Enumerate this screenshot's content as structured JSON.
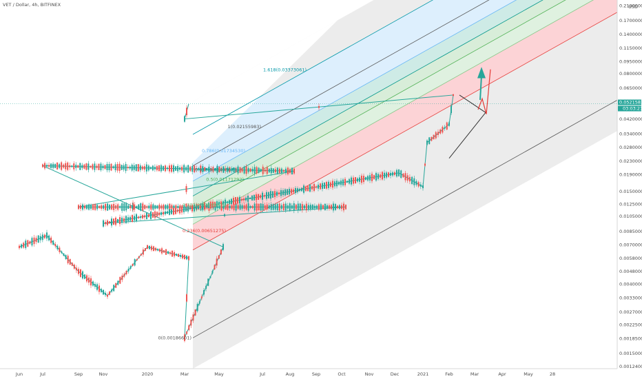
{
  "title": "VET / Dollar, 4h, BITFINEX",
  "chart_data": {
    "type": "candlestick",
    "title": "VET / Dollar, 4h, BITFINEX",
    "axis_unit_label": "USD",
    "yscale": "log",
    "ylim": [
      0.00124,
      0.215
    ],
    "grid": false,
    "y_ticks": [
      "0.21000000",
      "0.17000000",
      "0.14000000",
      "0.11500000",
      "0.09500000",
      "0.08000000",
      "0.06500000",
      "0.04200000",
      "0.03400000",
      "0.02800000",
      "0.02300000",
      "0.01900000",
      "0.01500000",
      "0.01250000",
      "0.01050000",
      "0.00850000",
      "0.00700000",
      "0.00580000",
      "0.00480000",
      "0.00400000",
      "0.00330000",
      "0.00270000",
      "0.00225000",
      "0.00185000",
      "0.00150000",
      "0.00124000"
    ],
    "x_ticks": [
      "Jun",
      "Jul",
      "Sep",
      "Nov",
      "2020",
      "Mar",
      "May",
      "Jul",
      "Aug",
      "Sep",
      "Oct",
      "Nov",
      "Dec",
      "2021",
      "Feb",
      "Mar",
      "Apr",
      "May",
      "28"
    ],
    "current_price": "0.05215830",
    "countdown": "03:03:21",
    "price_path": [
      [
        "Jun",
        0.0068
      ],
      [
        "Jul",
        0.008
      ],
      [
        "Sep",
        0.0048
      ],
      [
        "Nov",
        0.0034
      ],
      [
        "2020",
        0.0068
      ],
      [
        "Mar",
        0.0058
      ],
      [
        "Mar",
        0.00187
      ],
      [
        "May",
        0.0068
      ],
      [
        "Jul",
        0.0216
      ],
      [
        "Aug",
        0.02
      ],
      [
        "Sep",
        0.012
      ],
      [
        "Oct",
        0.012
      ],
      [
        "Nov",
        0.0095
      ],
      [
        "Dec",
        0.0195
      ],
      [
        "2021",
        0.016
      ],
      [
        "2021",
        0.03
      ],
      [
        "Feb",
        0.039
      ],
      [
        "Feb",
        0.059
      ],
      [
        "Mar",
        0.042
      ],
      [
        "Mar",
        0.052
      ]
    ],
    "fib_channel": {
      "levels": [
        {
          "label": "0(0.00186601)",
          "value": 0.00186601,
          "color": "#555555"
        },
        {
          "label": "0.236(0.00651275)",
          "value": 0.00651275,
          "color": "#e53935"
        },
        {
          "label": "0.382(0.00938905)",
          "value": 0.00938905,
          "color": "#81c784"
        },
        {
          "label": "0.5(0.01171292)",
          "value": 0.01171292,
          "color": "#4caf50"
        },
        {
          "label": "0.618(0.01403679)",
          "value": 0.01403679,
          "color": "#009688"
        },
        {
          "label": "0.786(0.01734530)",
          "value": 0.0173453,
          "color": "#64b5f6"
        },
        {
          "label": "1(0.02155983)",
          "value": 0.02155983,
          "color": "#555555"
        },
        {
          "label": "1.618(0.03373061)",
          "value": 0.03373061,
          "color": "#0097a7"
        }
      ]
    }
  }
}
